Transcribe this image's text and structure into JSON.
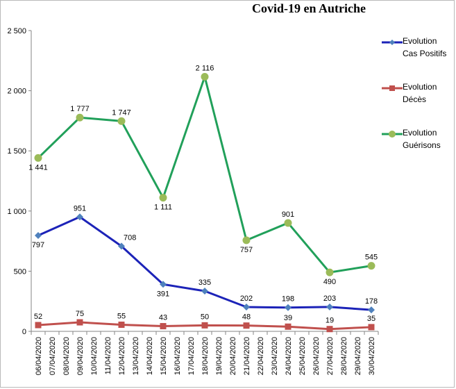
{
  "chart_data": {
    "type": "line",
    "title": "Covid-19 en Autriche",
    "xlabel": "",
    "ylabel": "",
    "ylim": [
      0,
      2500
    ],
    "yticks": [
      "0",
      "500",
      "1 000",
      "1 500",
      "2 000",
      "2 500"
    ],
    "ytick_values": [
      0,
      500,
      1000,
      1500,
      2000,
      2500
    ],
    "grid": false,
    "legend_position": "right",
    "categories": [
      "06/04/2020",
      "07/04/2020",
      "08/04/2020",
      "09/04/2020",
      "10/04/2020",
      "11/04/2020",
      "12/04/2020",
      "13/04/2020",
      "14/04/2020",
      "15/04/2020",
      "16/04/2020",
      "17/04/2020",
      "18/04/2020",
      "19/04/2020",
      "20/04/2020",
      "21/04/2020",
      "22/04/2020",
      "23/04/2020",
      "24/04/2020",
      "25/04/2020",
      "26/04/2020",
      "27/04/2020",
      "28/04/2020",
      "29/04/2020",
      "30/04/2020"
    ],
    "series": [
      {
        "name": "Evolution Cas Positifs",
        "legend_lines": [
          "Evolution",
          "Cas Positifs"
        ],
        "color": "#1c23b8",
        "marker_color": "#4f81bd",
        "marker": "diamond",
        "points": [
          {
            "x": "06/04/2020",
            "y": 797,
            "label": "797",
            "label_pos": "below"
          },
          {
            "x": "09/04/2020",
            "y": 951,
            "label": "951",
            "label_pos": "above"
          },
          {
            "x": "12/04/2020",
            "y": 708,
            "label": "708",
            "label_pos": "above-right"
          },
          {
            "x": "15/04/2020",
            "y": 391,
            "label": "391",
            "label_pos": "below"
          },
          {
            "x": "18/04/2020",
            "y": 335,
            "label": "335",
            "label_pos": "above"
          },
          {
            "x": "21/04/2020",
            "y": 202,
            "label": "202",
            "label_pos": "above"
          },
          {
            "x": "24/04/2020",
            "y": 198,
            "label": "198",
            "label_pos": "above"
          },
          {
            "x": "27/04/2020",
            "y": 203,
            "label": "203",
            "label_pos": "above"
          },
          {
            "x": "30/04/2020",
            "y": 178,
            "label": "178",
            "label_pos": "above"
          }
        ]
      },
      {
        "name": "Evolution Décès",
        "legend_lines": [
          "Evolution",
          "Décès"
        ],
        "color": "#c0504d",
        "marker_color": "#c0504d",
        "marker": "square",
        "points": [
          {
            "x": "06/04/2020",
            "y": 52,
            "label": "52",
            "label_pos": "above"
          },
          {
            "x": "09/04/2020",
            "y": 75,
            "label": "75",
            "label_pos": "above"
          },
          {
            "x": "12/04/2020",
            "y": 55,
            "label": "55",
            "label_pos": "above"
          },
          {
            "x": "15/04/2020",
            "y": 43,
            "label": "43",
            "label_pos": "above"
          },
          {
            "x": "18/04/2020",
            "y": 50,
            "label": "50",
            "label_pos": "above"
          },
          {
            "x": "21/04/2020",
            "y": 48,
            "label": "48",
            "label_pos": "above"
          },
          {
            "x": "24/04/2020",
            "y": 39,
            "label": "39",
            "label_pos": "above"
          },
          {
            "x": "27/04/2020",
            "y": 19,
            "label": "19",
            "label_pos": "above"
          },
          {
            "x": "30/04/2020",
            "y": 35,
            "label": "35",
            "label_pos": "above"
          }
        ]
      },
      {
        "name": "Evolution Guérisons",
        "legend_lines": [
          "Evolution",
          "Guérisons"
        ],
        "color": "#21a05a",
        "marker_color": "#9bbb59",
        "marker": "circle",
        "points": [
          {
            "x": "06/04/2020",
            "y": 1441,
            "label": "1 441",
            "label_pos": "below"
          },
          {
            "x": "09/04/2020",
            "y": 1777,
            "label": "1 777",
            "label_pos": "above"
          },
          {
            "x": "12/04/2020",
            "y": 1747,
            "label": "1 747",
            "label_pos": "above"
          },
          {
            "x": "15/04/2020",
            "y": 1111,
            "label": "1 111",
            "label_pos": "below"
          },
          {
            "x": "18/04/2020",
            "y": 2116,
            "label": "2 116",
            "label_pos": "above"
          },
          {
            "x": "21/04/2020",
            "y": 757,
            "label": "757",
            "label_pos": "below"
          },
          {
            "x": "24/04/2020",
            "y": 901,
            "label": "901",
            "label_pos": "above"
          },
          {
            "x": "27/04/2020",
            "y": 490,
            "label": "490",
            "label_pos": "below"
          },
          {
            "x": "30/04/2020",
            "y": 545,
            "label": "545",
            "label_pos": "above"
          }
        ]
      }
    ]
  }
}
